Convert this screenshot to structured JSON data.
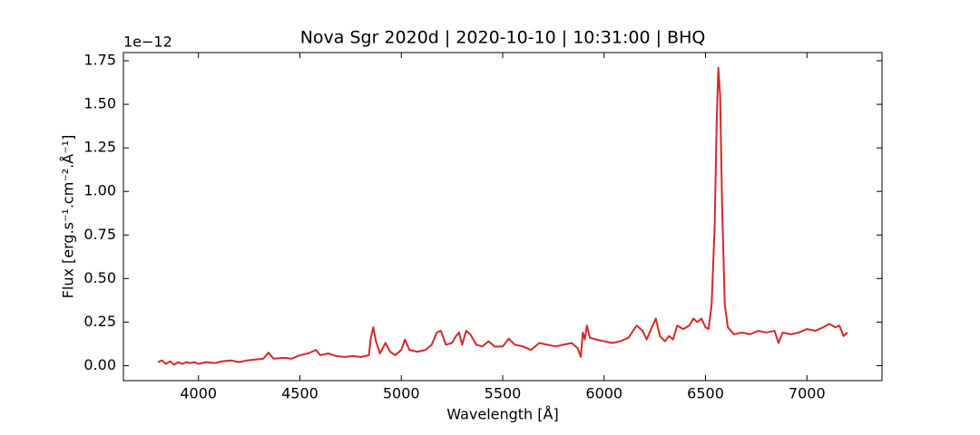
{
  "chart_data": {
    "type": "line",
    "title": "Nova Sgr 2020d | 2020-10-10 | 10:31:00 | BHQ",
    "x_label": "Wavelength [Å]",
    "y_label": "Flux [erg.s⁻¹.cm⁻².Å⁻¹]",
    "y_offset_label": "1e−12",
    "color": "#d62728",
    "x": [
      3800,
      3820,
      3840,
      3860,
      3880,
      3900,
      3920,
      3940,
      3960,
      3980,
      4000,
      4040,
      4080,
      4120,
      4160,
      4200,
      4240,
      4280,
      4320,
      4345,
      4370,
      4420,
      4460,
      4500,
      4540,
      4580,
      4600,
      4640,
      4680,
      4720,
      4760,
      4800,
      4840,
      4850,
      4862,
      4875,
      4895,
      4922,
      4945,
      4970,
      5000,
      5018,
      5040,
      5080,
      5120,
      5150,
      5175,
      5195,
      5220,
      5250,
      5270,
      5285,
      5300,
      5320,
      5340,
      5370,
      5400,
      5430,
      5460,
      5500,
      5530,
      5560,
      5600,
      5640,
      5680,
      5720,
      5760,
      5800,
      5840,
      5870,
      5885,
      5895,
      5905,
      5915,
      5930,
      5960,
      6000,
      6040,
      6080,
      6120,
      6160,
      6190,
      6210,
      6235,
      6255,
      6275,
      6300,
      6320,
      6340,
      6360,
      6390,
      6420,
      6440,
      6460,
      6480,
      6500,
      6515,
      6530,
      6545,
      6555,
      6563,
      6572,
      6582,
      6595,
      6610,
      6640,
      6680,
      6720,
      6760,
      6800,
      6840,
      6860,
      6880,
      6920,
      6960,
      7000,
      7040,
      7080,
      7110,
      7140,
      7160,
      7180,
      7200
    ],
    "values": [
      0.02,
      0.03,
      0.01,
      0.025,
      0.005,
      0.02,
      0.01,
      0.02,
      0.015,
      0.02,
      0.01,
      0.02,
      0.015,
      0.025,
      0.03,
      0.02,
      0.03,
      0.035,
      0.04,
      0.075,
      0.04,
      0.045,
      0.04,
      0.06,
      0.07,
      0.09,
      0.06,
      0.07,
      0.055,
      0.05,
      0.055,
      0.05,
      0.06,
      0.16,
      0.22,
      0.14,
      0.07,
      0.13,
      0.08,
      0.06,
      0.09,
      0.15,
      0.09,
      0.08,
      0.09,
      0.12,
      0.19,
      0.2,
      0.12,
      0.13,
      0.17,
      0.19,
      0.12,
      0.2,
      0.18,
      0.12,
      0.11,
      0.14,
      0.11,
      0.11,
      0.155,
      0.12,
      0.11,
      0.09,
      0.13,
      0.12,
      0.11,
      0.12,
      0.13,
      0.1,
      0.05,
      0.19,
      0.15,
      0.23,
      0.16,
      0.15,
      0.14,
      0.13,
      0.14,
      0.16,
      0.23,
      0.2,
      0.15,
      0.22,
      0.27,
      0.17,
      0.14,
      0.17,
      0.15,
      0.23,
      0.21,
      0.23,
      0.27,
      0.25,
      0.27,
      0.22,
      0.21,
      0.35,
      0.8,
      1.4,
      1.71,
      1.55,
      0.9,
      0.35,
      0.22,
      0.18,
      0.19,
      0.18,
      0.2,
      0.19,
      0.2,
      0.13,
      0.19,
      0.18,
      0.19,
      0.21,
      0.2,
      0.22,
      0.24,
      0.22,
      0.23,
      0.17,
      0.19
    ],
    "xlim": [
      3630,
      7370
    ],
    "ylim": [
      -0.086,
      1.797
    ],
    "xticks": [
      4000,
      4500,
      5000,
      5500,
      6000,
      6500,
      7000
    ],
    "yticks": [
      {
        "value": 0,
        "label": "0.00"
      },
      0.25,
      {
        "value": 0.5,
        "label": "0.50"
      },
      0.75,
      {
        "value": 1,
        "label": "1.00"
      },
      1.25,
      {
        "value": 1.5,
        "label": "1.50"
      },
      1.75
    ]
  }
}
